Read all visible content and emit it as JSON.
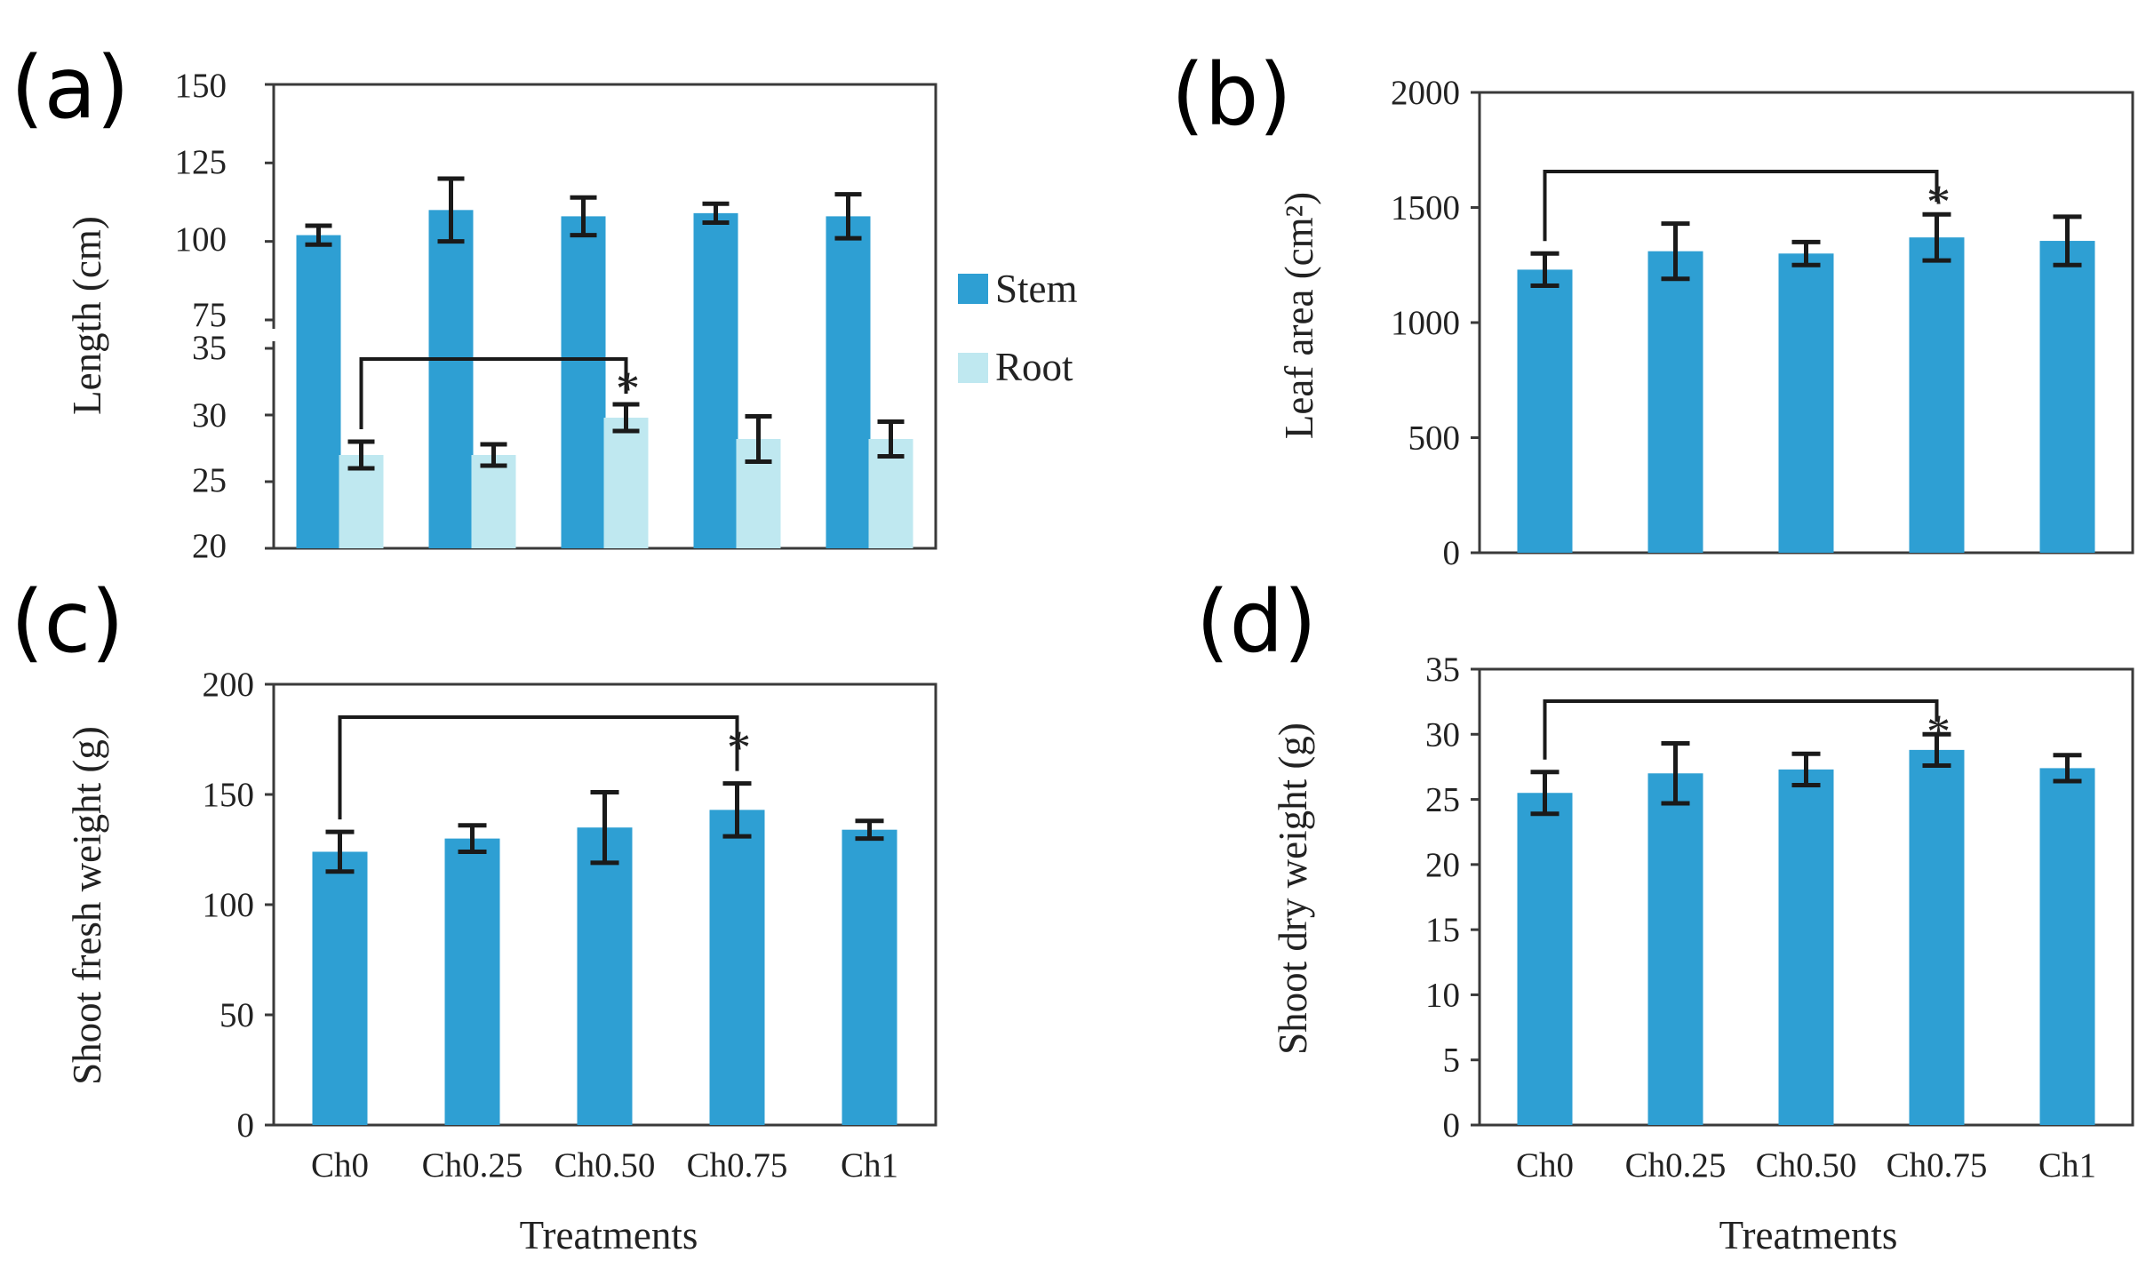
{
  "colors": {
    "stem": "#2e9fd3",
    "root": "#bfe8f0",
    "bar": "#2e9fd3"
  },
  "chart_data": [
    {
      "panel": "(a)",
      "type": "bar",
      "ylabel": "Length (cm)",
      "xlabel": "",
      "categories": [
        "Ch0",
        "Ch0.25",
        "Ch0.50",
        "Ch0.75",
        "Ch1"
      ],
      "show_category_labels": false,
      "broken_axis": true,
      "upper_ylim": [
        75,
        150
      ],
      "upper_yticks": [
        "150",
        "125",
        "100",
        "75"
      ],
      "lower_ylim": [
        20,
        35
      ],
      "lower_yticks": [
        "35",
        "30",
        "25",
        "20"
      ],
      "legend": [
        "Stem",
        "Root"
      ],
      "series": [
        {
          "name": "Stem",
          "values": [
            102,
            110,
            108,
            109,
            108
          ],
          "errors": [
            3,
            10,
            6,
            3,
            7
          ]
        },
        {
          "name": "Root",
          "values": [
            27.0,
            27.0,
            29.8,
            28.2,
            28.2
          ],
          "errors": [
            1.0,
            0.8,
            1.0,
            1.7,
            1.3
          ]
        }
      ],
      "significance": {
        "from": "Ch0",
        "to": "Ch0.50",
        "marker": "*"
      }
    },
    {
      "panel": "(b)",
      "type": "bar",
      "ylabel": "Leaf area (cm²)",
      "xlabel": "",
      "categories": [
        "Ch0",
        "Ch0.25",
        "Ch0.50",
        "Ch0.75",
        "Ch1"
      ],
      "show_category_labels": false,
      "ylim": [
        0,
        2000
      ],
      "yticks": [
        "2000",
        "1500",
        "1000",
        "500",
        "0"
      ],
      "values": [
        1230,
        1310,
        1300,
        1370,
        1355
      ],
      "errors": [
        70,
        120,
        50,
        100,
        105
      ],
      "significance": {
        "from": "Ch0",
        "to": "Ch0.75",
        "marker": "*"
      }
    },
    {
      "panel": "(c)",
      "type": "bar",
      "ylabel": "Shoot fresh weight (g)",
      "xlabel": "Treatments",
      "categories": [
        "Ch0",
        "Ch0.25",
        "Ch0.50",
        "Ch0.75",
        "Ch1"
      ],
      "show_category_labels": true,
      "ylim": [
        0,
        200
      ],
      "yticks": [
        "200",
        "150",
        "100",
        "50",
        "0"
      ],
      "values": [
        124,
        130,
        135,
        143,
        134
      ],
      "errors": [
        9,
        6,
        16,
        12,
        4
      ],
      "significance": {
        "from": "Ch0",
        "to": "Ch0.75",
        "marker": "*"
      }
    },
    {
      "panel": "(d)",
      "type": "bar",
      "ylabel": "Shoot dry weight (g)",
      "xlabel": "Treatments",
      "categories": [
        "Ch0",
        "Ch0.25",
        "Ch0.50",
        "Ch0.75",
        "Ch1"
      ],
      "show_category_labels": true,
      "ylim": [
        0,
        35
      ],
      "yticks": [
        "35",
        "30",
        "25",
        "20",
        "15",
        "10",
        "5",
        "0"
      ],
      "values": [
        25.5,
        27.0,
        27.3,
        28.8,
        27.4
      ],
      "errors": [
        1.6,
        2.3,
        1.2,
        1.2,
        1.0
      ],
      "significance": {
        "from": "Ch0",
        "to": "Ch0.75",
        "marker": "*"
      }
    }
  ]
}
